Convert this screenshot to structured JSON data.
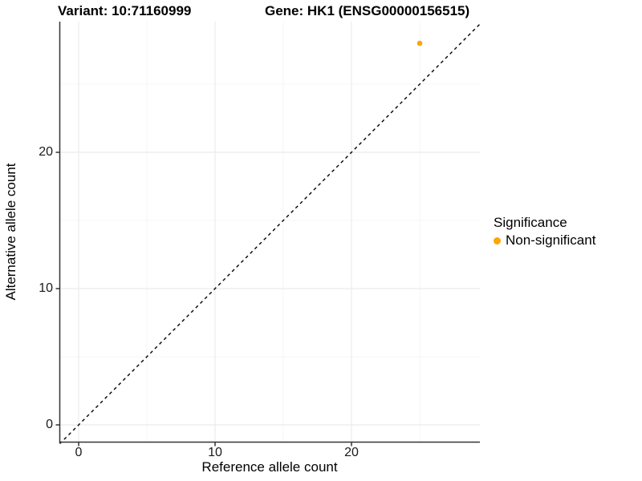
{
  "titles": {
    "variant": "Variant: 10:71160999",
    "gene": "Gene: HK1 (ENSG00000156515)"
  },
  "x_axis": {
    "label": "Reference allele count"
  },
  "y_axis": {
    "label": "Alternative allele count"
  },
  "legend": {
    "title": "Significance",
    "items": [
      {
        "label": "Non-significant",
        "color": "#FFA500"
      }
    ]
  },
  "colors": {
    "point": "#FFA500",
    "axis_line": "#333333",
    "tick_mark": "#333333",
    "grid_major": "#ebebeb",
    "grid_minor": "#f4f4f4",
    "identity_line": "#000000",
    "background": "#ffffff"
  },
  "chart_data": {
    "type": "scatter",
    "title": "Variant: 10:71160999   Gene: HK1 (ENSG00000156515)",
    "xlabel": "Reference allele count",
    "ylabel": "Alternative allele count",
    "xlim": [
      -1.4,
      29.4
    ],
    "ylim": [
      -1.4,
      29.6
    ],
    "x_ticks": [
      0,
      10,
      20
    ],
    "y_ticks": [
      0,
      10,
      20
    ],
    "grid": {
      "major": [
        0,
        10,
        20
      ],
      "minor": [
        5,
        15,
        25
      ]
    },
    "points": [
      {
        "x": 25,
        "y": 28,
        "series": "Non-significant",
        "color": "#FFA500"
      }
    ],
    "reference_line": {
      "type": "identity",
      "equation": "y = x",
      "style": "dashed",
      "color": "#000000"
    },
    "legend": {
      "title": "Significance",
      "position": "right",
      "entries": [
        "Non-significant"
      ]
    }
  }
}
